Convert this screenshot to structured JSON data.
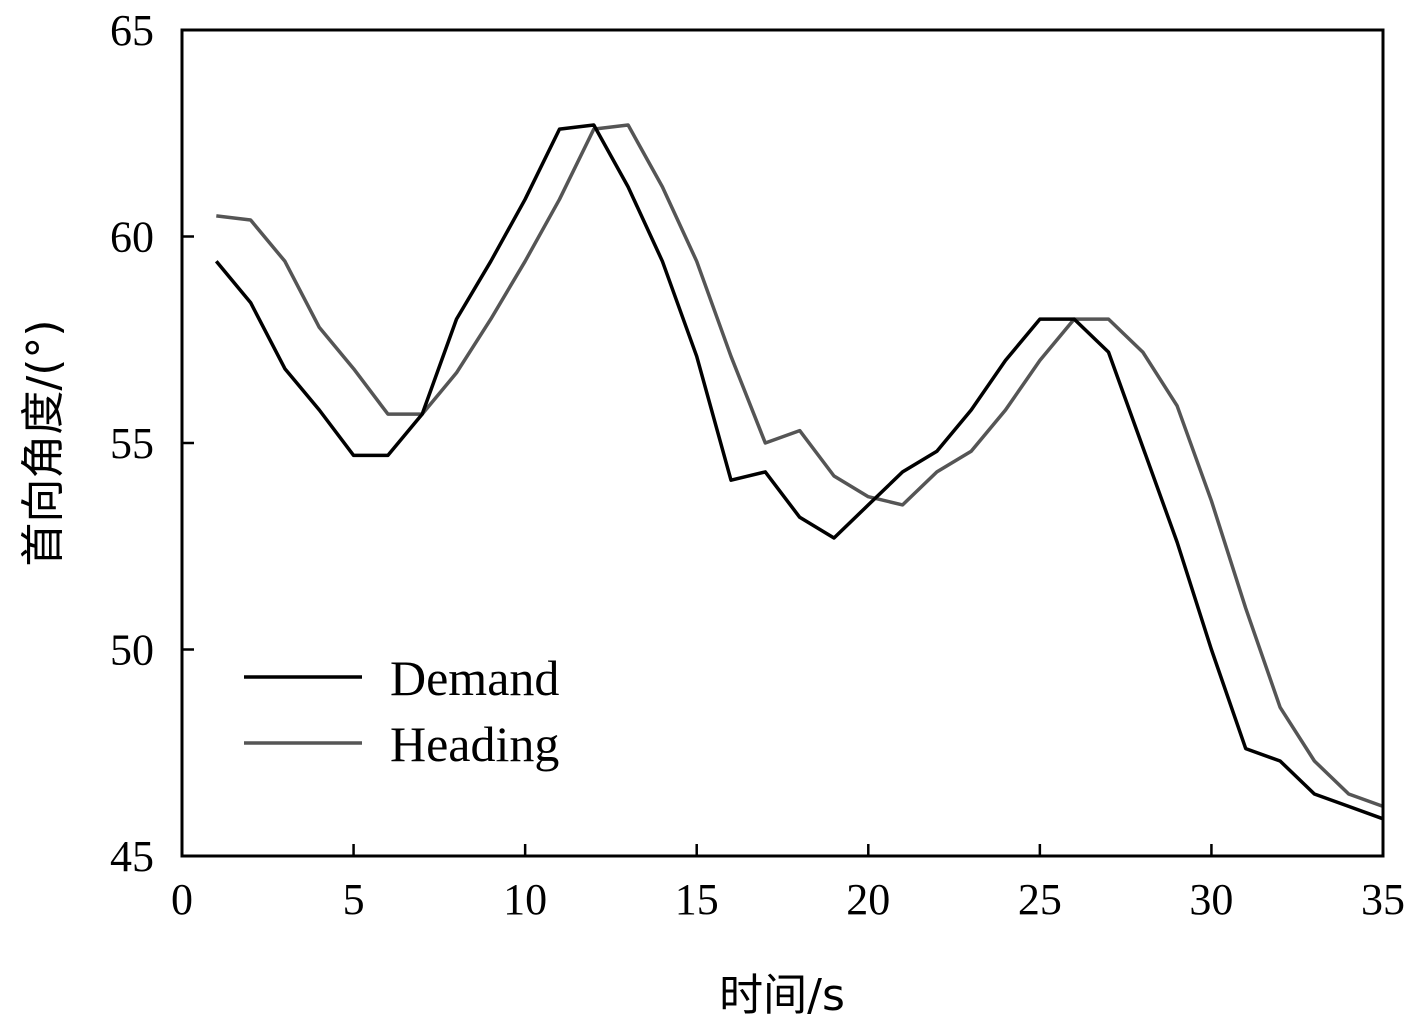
{
  "chart_data": {
    "type": "line",
    "title": "",
    "xlabel": "时间/s",
    "ylabel": "首向角度/(°)",
    "xlim": [
      0,
      35
    ],
    "ylim": [
      45,
      65
    ],
    "x_ticks": [
      0,
      5,
      10,
      15,
      20,
      25,
      30,
      35
    ],
    "y_ticks": [
      45,
      50,
      55,
      60,
      65
    ],
    "grid": false,
    "legend_position": "lower-left",
    "x": [
      1,
      2,
      3,
      4,
      5,
      6,
      7,
      8,
      9,
      10,
      11,
      12,
      13,
      14,
      15,
      16,
      17,
      18,
      19,
      20,
      21,
      22,
      23,
      24,
      25,
      26,
      27,
      28,
      29,
      30,
      31,
      32,
      33,
      34,
      35
    ],
    "series": [
      {
        "name": "Demand",
        "color": "#000000",
        "values": [
          59.4,
          58.4,
          56.8,
          55.8,
          54.7,
          54.7,
          55.7,
          58.0,
          59.4,
          60.9,
          62.6,
          62.7,
          61.2,
          59.4,
          57.1,
          54.1,
          54.3,
          53.2,
          52.7,
          53.5,
          54.3,
          54.8,
          55.8,
          57.0,
          58.0,
          58.0,
          57.2,
          54.9,
          52.6,
          50.0,
          47.6,
          47.3,
          46.5,
          46.2,
          45.9
        ]
      },
      {
        "name": "Heading",
        "color": "#555555",
        "values": [
          60.5,
          60.4,
          59.4,
          57.8,
          56.8,
          55.7,
          55.7,
          56.7,
          58.0,
          59.4,
          60.9,
          62.6,
          62.7,
          61.2,
          59.4,
          57.1,
          55.0,
          55.3,
          54.2,
          53.7,
          53.5,
          54.3,
          54.8,
          55.8,
          57.0,
          58.0,
          58.0,
          57.2,
          55.9,
          53.6,
          51.0,
          48.6,
          47.3,
          46.5,
          46.2
        ]
      }
    ]
  }
}
